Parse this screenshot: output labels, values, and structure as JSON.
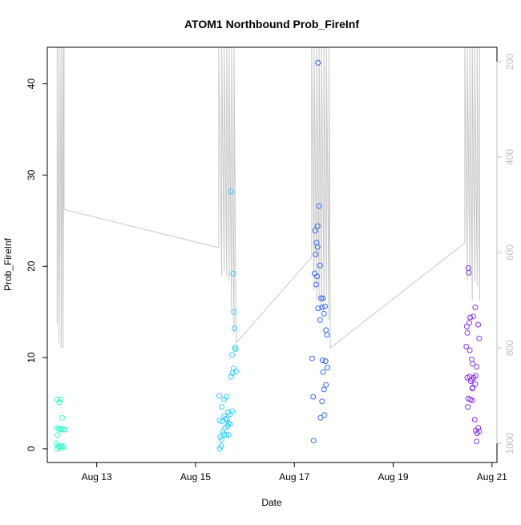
{
  "chart_data": {
    "type": "scatter",
    "title": "ATOM1 Northbound Prob_FireInf",
    "xlabel": "Date",
    "ylabel": "Prob_FireInf",
    "y2label": "",
    "xlim": [
      12.0,
      21.1
    ],
    "ylim": [
      -1.5,
      44
    ],
    "y2lim": [
      1040,
      170
    ],
    "x_ticks": [
      {
        "x": 13,
        "label": "Aug 13"
      },
      {
        "x": 15,
        "label": "Aug 15"
      },
      {
        "x": 17,
        "label": "Aug 17"
      },
      {
        "x": 19,
        "label": "Aug 19"
      },
      {
        "x": 21,
        "label": "Aug 21"
      }
    ],
    "y_ticks": [
      {
        "y": 0,
        "label": "0"
      },
      {
        "y": 10,
        "label": "10"
      },
      {
        "y": 20,
        "label": "20"
      },
      {
        "y": 30,
        "label": "30"
      },
      {
        "y": 40,
        "label": "40"
      }
    ],
    "y2_ticks": [
      {
        "y": 200,
        "label": "200"
      },
      {
        "y": 400,
        "label": "400"
      },
      {
        "y": 600,
        "label": "600"
      },
      {
        "y": 800,
        "label": "800"
      },
      {
        "y": 1000,
        "label": "1000"
      }
    ],
    "right_axis_color": "#bfbfbf",
    "line_color": "#c8c8c8",
    "grid": false,
    "line_series": [
      {
        "x": [
          12.2,
          12.2,
          12.24,
          12.24,
          12.28,
          12.28,
          12.32,
          12.32,
          12.34,
          12.34,
          15.47,
          15.47,
          15.53,
          15.53,
          15.58,
          15.58,
          15.63,
          15.63,
          15.68,
          15.68,
          15.73,
          15.73,
          15.78,
          15.78,
          15.82,
          17.35,
          17.35,
          17.4,
          17.4,
          17.45,
          17.45,
          17.5,
          17.5,
          17.55,
          17.55,
          17.6,
          17.6,
          17.65,
          17.65,
          17.7,
          17.7,
          17.73,
          20.45,
          20.45,
          20.5,
          20.5,
          20.55,
          20.55,
          20.6,
          20.6,
          20.65,
          20.65,
          20.7,
          20.7,
          20.75,
          20.75
        ],
        "y2": [
          170,
          750,
          170,
          790,
          170,
          800,
          170,
          800,
          170,
          510,
          590,
          170,
          650,
          170,
          640,
          170,
          650,
          170,
          660,
          170,
          730,
          170,
          770,
          170,
          790,
          610,
          170,
          680,
          170,
          700,
          170,
          700,
          170,
          720,
          170,
          700,
          170,
          690,
          170,
          740,
          170,
          800,
          580,
          170,
          660,
          170,
          650,
          170,
          700,
          170,
          660,
          170,
          670,
          170,
          700,
          170
        ]
      }
    ],
    "series": [
      {
        "color": "#33ffcc",
        "points": [
          [
            12.2,
            5.4
          ],
          [
            12.24,
            5.1
          ],
          [
            12.27,
            5.4
          ],
          [
            12.19,
            2.3
          ],
          [
            12.23,
            2.2
          ],
          [
            12.26,
            2.1
          ],
          [
            12.29,
            2.2
          ],
          [
            12.32,
            2.1
          ],
          [
            12.35,
            2.1
          ],
          [
            12.21,
            1.5
          ],
          [
            12.18,
            0.6
          ],
          [
            12.22,
            0.3
          ],
          [
            12.25,
            0.1
          ],
          [
            12.28,
            0.3
          ],
          [
            12.31,
            0.1
          ],
          [
            12.33,
            0.3
          ],
          [
            12.2,
            0.0
          ],
          [
            12.3,
            3.4
          ]
        ]
      },
      {
        "color": "#33ccff",
        "points": [
          [
            15.72,
            28.2
          ],
          [
            15.76,
            19.2
          ],
          [
            15.78,
            15.0
          ],
          [
            15.79,
            13.2
          ],
          [
            15.8,
            11.1
          ],
          [
            15.81,
            10.9
          ],
          [
            15.74,
            10.3
          ],
          [
            15.77,
            8.8
          ],
          [
            15.82,
            8.5
          ],
          [
            15.75,
            8.3
          ],
          [
            15.72,
            7.9
          ],
          [
            15.48,
            5.8
          ],
          [
            15.53,
            4.6
          ],
          [
            15.58,
            5.4
          ],
          [
            15.63,
            5.7
          ],
          [
            15.66,
            4.0
          ],
          [
            15.7,
            3.8
          ],
          [
            15.74,
            4.1
          ],
          [
            15.49,
            3.1
          ],
          [
            15.54,
            3.0
          ],
          [
            15.58,
            3.6
          ],
          [
            15.61,
            3.3
          ],
          [
            15.64,
            3.2
          ],
          [
            15.67,
            2.8
          ],
          [
            15.7,
            2.7
          ],
          [
            15.55,
            1.9
          ],
          [
            15.6,
            2.3
          ],
          [
            15.65,
            2.5
          ],
          [
            15.5,
            1.3
          ],
          [
            15.53,
            1.0
          ],
          [
            15.57,
            1.6
          ],
          [
            15.62,
            1.5
          ],
          [
            15.67,
            1.5
          ],
          [
            15.52,
            0.3
          ],
          [
            15.49,
            0.0
          ]
        ]
      },
      {
        "color": "#3366ff",
        "points": [
          [
            17.48,
            42.3
          ],
          [
            17.5,
            26.6
          ],
          [
            17.47,
            24.4
          ],
          [
            17.42,
            23.9
          ],
          [
            17.45,
            22.6
          ],
          [
            17.47,
            22.1
          ],
          [
            17.43,
            21.3
          ],
          [
            17.52,
            20.1
          ],
          [
            17.41,
            19.2
          ],
          [
            17.46,
            18.9
          ],
          [
            17.44,
            18.0
          ],
          [
            17.54,
            16.5
          ],
          [
            17.58,
            16.5
          ],
          [
            17.62,
            15.6
          ],
          [
            17.48,
            15.4
          ],
          [
            17.56,
            15.5
          ],
          [
            17.6,
            14.8
          ],
          [
            17.52,
            14.1
          ],
          [
            17.64,
            13.0
          ],
          [
            17.66,
            12.5
          ],
          [
            17.36,
            9.9
          ],
          [
            17.57,
            9.7
          ],
          [
            17.63,
            9.6
          ],
          [
            17.67,
            8.9
          ],
          [
            17.58,
            8.4
          ],
          [
            17.64,
            7.0
          ],
          [
            17.6,
            6.5
          ],
          [
            17.38,
            5.7
          ],
          [
            17.56,
            5.2
          ],
          [
            17.61,
            3.7
          ],
          [
            17.53,
            3.4
          ],
          [
            17.39,
            0.9
          ]
        ]
      },
      {
        "color": "#8833ee",
        "points": [
          [
            20.52,
            19.8
          ],
          [
            20.53,
            19.3
          ],
          [
            20.66,
            15.5
          ],
          [
            20.62,
            14.5
          ],
          [
            20.56,
            14.4
          ],
          [
            20.54,
            13.8
          ],
          [
            20.49,
            13.4
          ],
          [
            20.72,
            13.6
          ],
          [
            20.5,
            12.7
          ],
          [
            20.74,
            12.1
          ],
          [
            20.48,
            11.2
          ],
          [
            20.55,
            10.8
          ],
          [
            20.59,
            9.8
          ],
          [
            20.61,
            9.3
          ],
          [
            20.69,
            9.0
          ],
          [
            20.5,
            7.8
          ],
          [
            20.55,
            7.9
          ],
          [
            20.59,
            7.6
          ],
          [
            20.63,
            7.8
          ],
          [
            20.67,
            8.0
          ],
          [
            20.57,
            7.4
          ],
          [
            20.6,
            6.6
          ],
          [
            20.66,
            7.1
          ],
          [
            20.61,
            6.7
          ],
          [
            20.52,
            5.5
          ],
          [
            20.56,
            5.4
          ],
          [
            20.6,
            5.3
          ],
          [
            20.51,
            4.6
          ],
          [
            20.65,
            3.2
          ],
          [
            20.67,
            2.0
          ],
          [
            20.7,
            1.7
          ],
          [
            20.72,
            2.3
          ],
          [
            20.74,
            1.9
          ],
          [
            20.69,
            0.8
          ]
        ]
      }
    ]
  }
}
